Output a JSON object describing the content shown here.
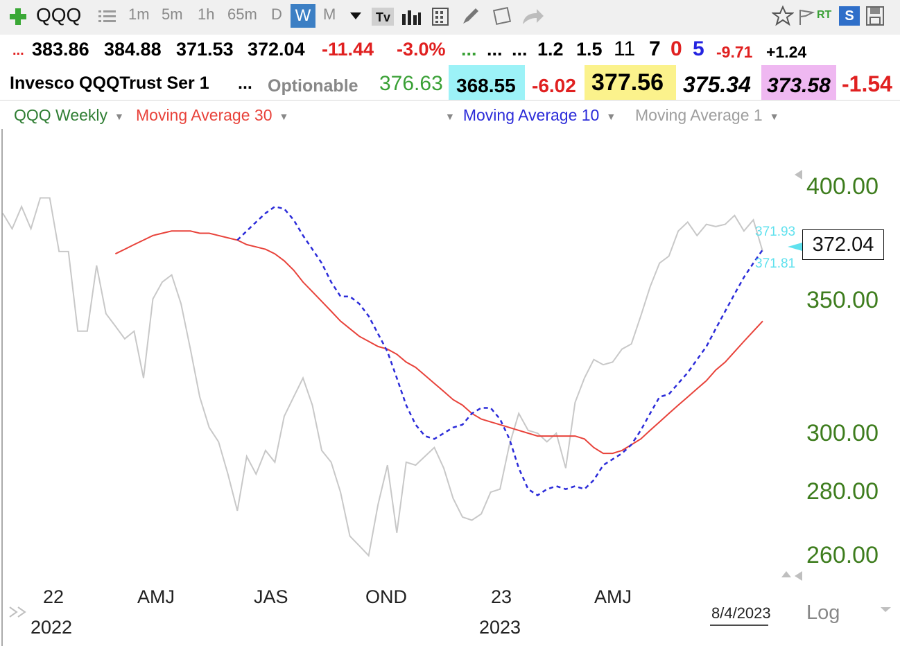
{
  "toolbar": {
    "symbol": "QQQ",
    "intervals": [
      "1m",
      "5m",
      "1h",
      "65m",
      "D",
      "W",
      "M"
    ],
    "active_interval": "W",
    "rt_label": "RT",
    "s_label": "S"
  },
  "quote_row1": {
    "lead": "...",
    "open": "383.86",
    "high": "384.88",
    "low": "371.53",
    "last": "372.04",
    "change": "-11.44",
    "change_pct": "-3.0%",
    "dots1": "...",
    "dots2": "...",
    "dots3": "...",
    "v1": "1.2",
    "v2": "1.5",
    "n1": "11",
    "n2": "7",
    "n3": "0",
    "n4": "5",
    "d1": "-9.71",
    "d2": "+1.24"
  },
  "quote_row2": {
    "name": "Invesco QQQTrust Ser 1",
    "dots": "...",
    "optionable": "Optionable",
    "v1": "376.63",
    "v2": "368.55",
    "v3": "-6.02",
    "v4": "377.56",
    "v5": "375.34",
    "v6": "373.58",
    "v7": "-1.54"
  },
  "legend": {
    "main": "QQQ Weekly",
    "ma30": "Moving Average 30",
    "ma10": "Moving Average 10",
    "ma1": "Moving Average 1"
  },
  "colors": {
    "price": "#c8c8c8",
    "ma30": "#e8423a",
    "ma10": "#2b2bd9",
    "axis_text": "#3e7d1e",
    "marker": "#5fe1ee"
  },
  "chart_data": {
    "type": "line",
    "scale": "log",
    "ylim": [
      245,
      420
    ],
    "y_ticks": [
      "400.00",
      "350.00",
      "300.00",
      "280.00",
      "260.00"
    ],
    "x_ticks": [
      "22",
      "AMJ",
      "JAS",
      "OND",
      "23",
      "AMJ"
    ],
    "x_year_labels": [
      "2022",
      "2023"
    ],
    "date_label": "8/4/2023",
    "last_value": "372.04",
    "marker_labels": [
      "371.93",
      "371.81"
    ],
    "log_label": "Log",
    "series": [
      {
        "name": "QQQ Weekly",
        "values": [
          388,
          381,
          391,
          381,
          395,
          395,
          371,
          371,
          338,
          338,
          365,
          345,
          340,
          335,
          338,
          320,
          351,
          358,
          361,
          349,
          331,
          313,
          302,
          297,
          286,
          274,
          292,
          286,
          294,
          290,
          306,
          313,
          320,
          310,
          294,
          290,
          280,
          266,
          263,
          260,
          276,
          289,
          267,
          290,
          289,
          292,
          295,
          288,
          278,
          272,
          271,
          273,
          280,
          281,
          296,
          307,
          301,
          300,
          297,
          300,
          288,
          311,
          320,
          327,
          325,
          326,
          331,
          333,
          344,
          356,
          366,
          369,
          380,
          384,
          378,
          383,
          382,
          383,
          387,
          380,
          385,
          371
        ]
      },
      {
        "name": "Moving Average 30",
        "values": [
          370,
          372,
          374,
          376,
          378,
          379,
          380,
          380,
          380,
          379,
          379,
          378,
          377,
          376,
          374,
          373,
          372,
          370,
          367,
          363,
          358,
          354,
          350,
          346,
          342,
          339,
          336,
          334,
          332,
          331,
          329,
          326,
          324,
          321,
          318,
          315,
          312,
          310,
          307,
          305,
          304,
          303,
          302,
          301,
          300,
          299,
          299,
          299,
          299,
          299,
          298,
          295,
          293,
          293,
          294,
          296,
          298,
          301,
          304,
          307,
          310,
          313,
          316,
          319,
          323,
          326,
          330,
          334,
          338,
          342
        ]
      },
      {
        "name": "Moving Average 10",
        "values": [
          376,
          380,
          384,
          388,
          391,
          390,
          385,
          378,
          372,
          366,
          358,
          352,
          352,
          349,
          344,
          337,
          330,
          320,
          310,
          303,
          299,
          298,
          300,
          302,
          303,
          307,
          309,
          309,
          305,
          298,
          288,
          281,
          279,
          281,
          282,
          281,
          282,
          281,
          284,
          289,
          291,
          293,
          296,
          301,
          307,
          313,
          314,
          318,
          322,
          327,
          332,
          339,
          346,
          353,
          360,
          366,
          371.8
        ]
      }
    ]
  }
}
